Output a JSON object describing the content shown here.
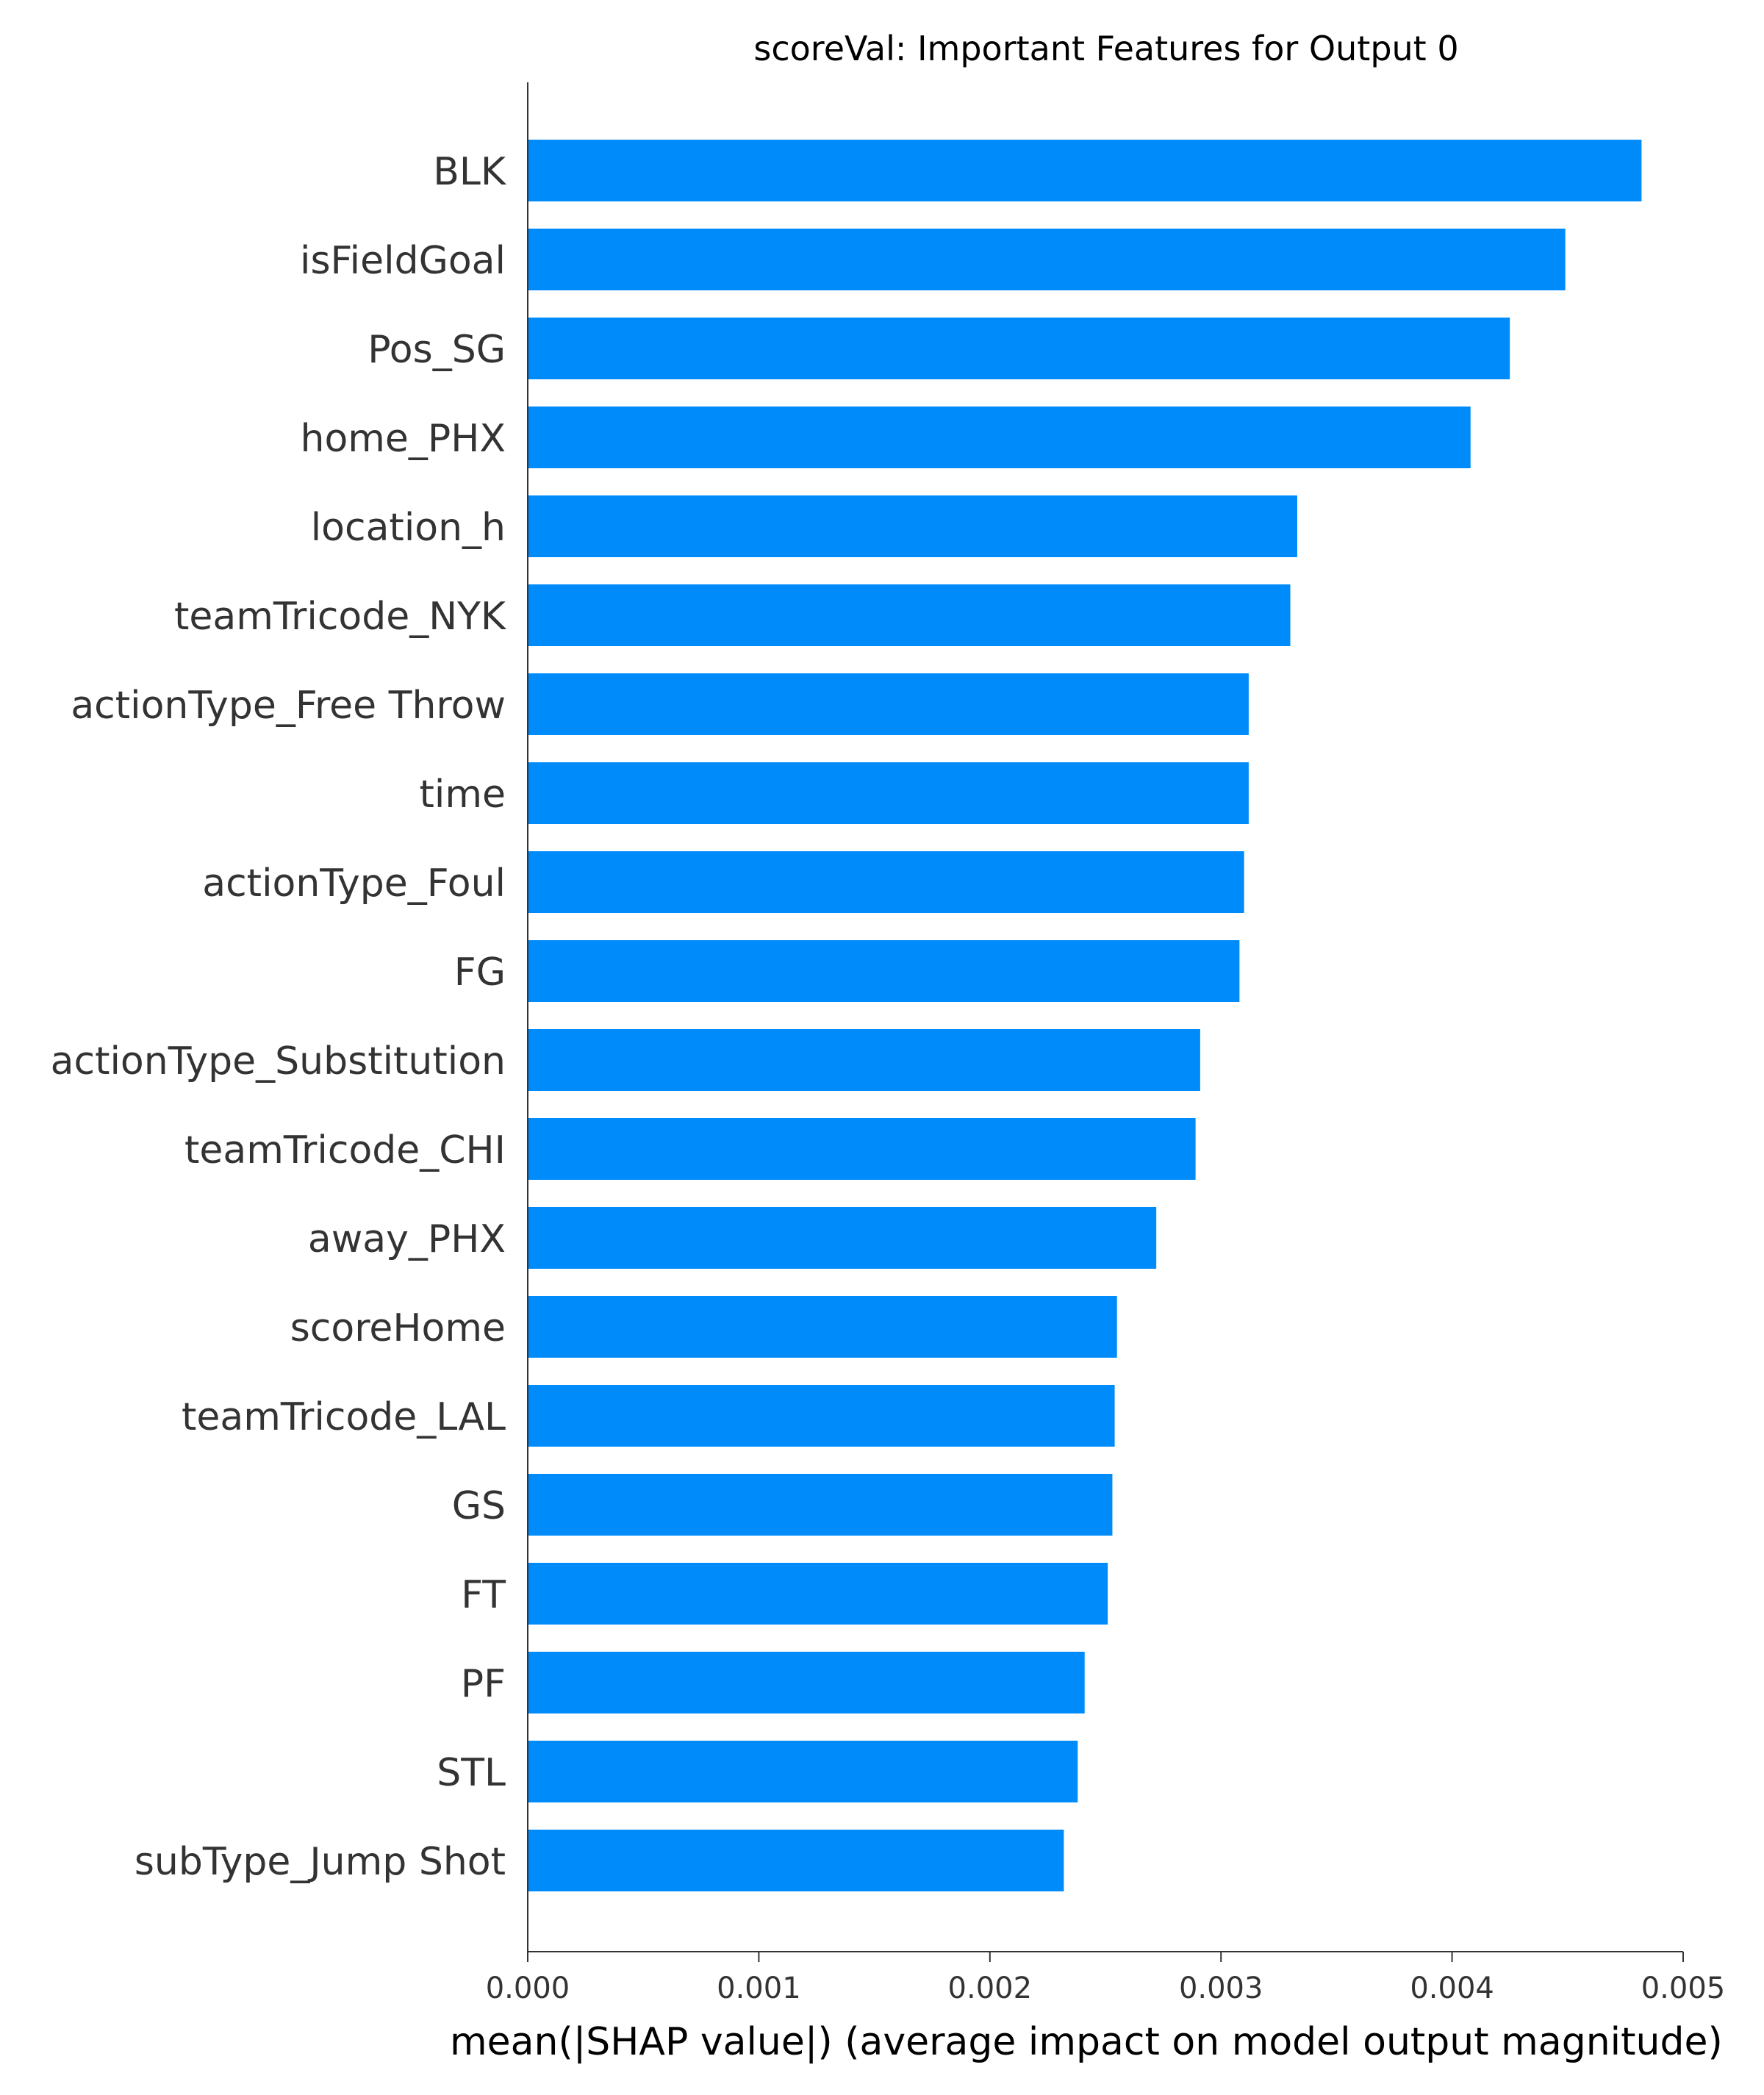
{
  "chart_data": {
    "type": "bar",
    "orientation": "horizontal",
    "title": "scoreVal: Important Features for Output 0",
    "xlabel": "mean(|SHAP value|) (average impact on model output magnitude)",
    "ylabel": "",
    "xlim": [
      0,
      0.005
    ],
    "xticks": [
      0.0,
      0.001,
      0.002,
      0.003,
      0.004,
      0.005
    ],
    "xtick_labels": [
      "0.000",
      "0.001",
      "0.002",
      "0.003",
      "0.004",
      "0.005"
    ],
    "grid": false,
    "bar_color": "#008bfb",
    "categories": [
      "BLK",
      "isFieldGoal",
      "Pos_SG",
      "home_PHX",
      "location_h",
      "teamTricode_NYK",
      "actionType_Free Throw",
      "time",
      "actionType_Foul",
      "FG",
      "actionType_Substitution",
      "teamTricode_CHI",
      "away_PHX",
      "scoreHome",
      "teamTricode_LAL",
      "GS",
      "FT",
      "PF",
      "STL",
      "subType_Jump Shot"
    ],
    "values": [
      0.00482,
      0.00449,
      0.00425,
      0.00408,
      0.00333,
      0.0033,
      0.00312,
      0.00312,
      0.0031,
      0.00308,
      0.00291,
      0.00289,
      0.00272,
      0.00255,
      0.00254,
      0.00253,
      0.00251,
      0.00241,
      0.00238,
      0.00232
    ]
  }
}
